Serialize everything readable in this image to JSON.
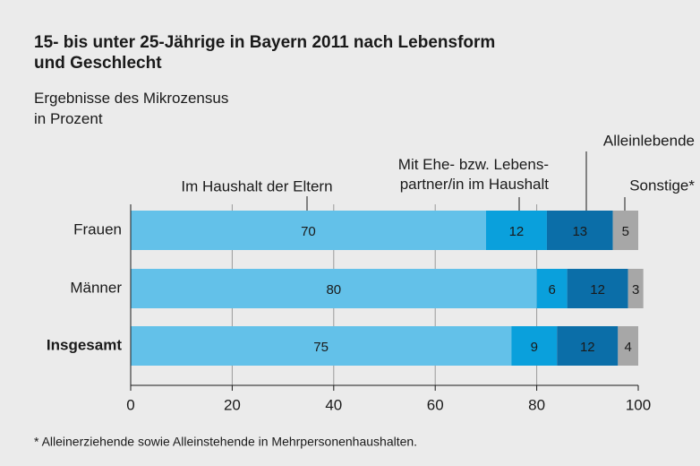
{
  "chart_data": {
    "type": "stacked_bar_horizontal",
    "title": "15- bis unter 25-Jährige in Bayern 2011 nach Lebensform\nund Geschlecht",
    "subtitle": "Ergebnisse des Mikrozensus\nin Prozent",
    "categories": [
      "Frauen",
      "Männer",
      "Insgesamt"
    ],
    "series": [
      {
        "name": "Im Haushalt der Eltern",
        "color": "#63c1e9",
        "values": [
          70,
          80,
          75
        ]
      },
      {
        "name": "Mit Ehe- bzw. Lebens-\npartner/in im Haushalt",
        "color": "#0aa0dc",
        "values": [
          12,
          6,
          9
        ]
      },
      {
        "name": "Alleinlebende",
        "color": "#0b6ea8",
        "values": [
          13,
          12,
          12
        ]
      },
      {
        "name": "Sonstige*",
        "color": "#a7a7a7",
        "values": [
          5,
          3,
          4
        ]
      }
    ],
    "xlim": [
      0,
      100
    ],
    "xticks": [
      0,
      20,
      40,
      60,
      80,
      100
    ],
    "grid": true,
    "footnote": "*  Alleinerziehende sowie Alleinstehende in Mehrpersonenhaushalten."
  }
}
